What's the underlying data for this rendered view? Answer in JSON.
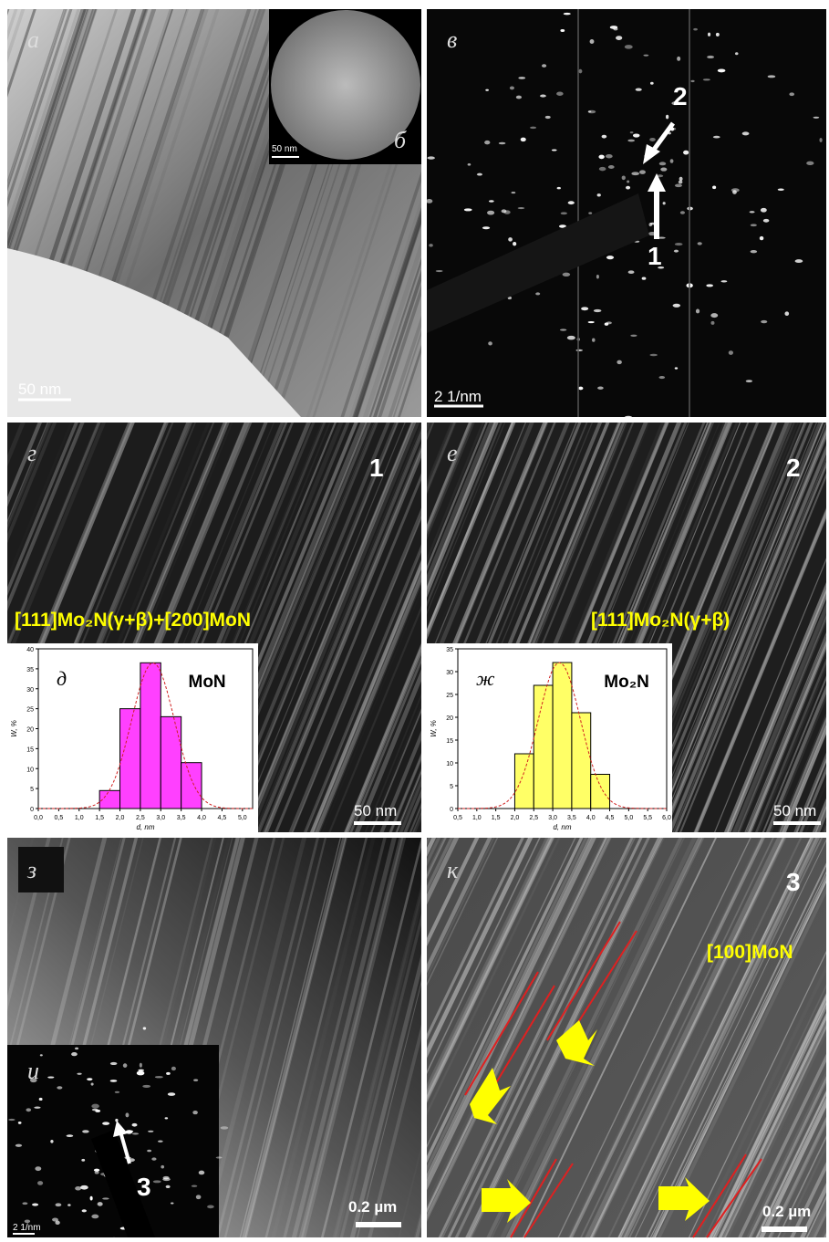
{
  "panels": [
    {
      "label": "а",
      "scale_bar": "50 nm"
    },
    {
      "label": "б",
      "scale_bar": "50 nm"
    },
    {
      "label": "в",
      "scale_bar": "2 1/nm",
      "markers": [
        "2",
        "1"
      ]
    },
    {
      "label": "г",
      "marker": "1",
      "annotation": "[111]Mo₂N(γ+β)+[200]MoN",
      "scale_bar": "50 nm"
    },
    {
      "label": "е",
      "marker": "2",
      "annotation": "[111]Mo₂N(γ+β)",
      "scale_bar": "50 nm"
    },
    {
      "label": "з",
      "scale_bar": "0.2 µm"
    },
    {
      "label": "и",
      "marker": "3",
      "scale_bar": "2 1/nm"
    },
    {
      "label": "к",
      "marker": "3",
      "annotation": "[100]MoN",
      "scale_bar": "0.2 µm"
    }
  ],
  "chart_data": [
    {
      "type": "histogram",
      "panel_label": "д",
      "title": "MoN",
      "x_label": "d, nm",
      "y_label": "W, %",
      "color": "#ff40ff",
      "bins": [
        1.5,
        2.0,
        2.5,
        3.0,
        3.5,
        4.0
      ],
      "values": [
        4.5,
        25,
        36.5,
        23,
        11.5
      ],
      "xlim": [
        0,
        5.25
      ],
      "ylim": [
        0,
        40
      ],
      "xticks": [
        {
          "value": 0,
          "label": "0,0"
        },
        {
          "value": 0.5,
          "label": "0,5"
        },
        {
          "value": 1,
          "label": "1,0"
        },
        {
          "value": 1.5,
          "label": "1,5"
        },
        {
          "value": 2,
          "label": "2,0"
        },
        {
          "value": 2.5,
          "label": "2,5"
        },
        {
          "value": 3,
          "label": "3,0"
        },
        {
          "value": 3.5,
          "label": "3,5"
        },
        {
          "value": 4,
          "label": "4,0"
        },
        {
          "value": 4.5,
          "label": "4,5"
        },
        {
          "value": 5,
          "label": "5,0"
        }
      ],
      "yticks": [
        0,
        5,
        10,
        15,
        20,
        25,
        30,
        35,
        40
      ]
    },
    {
      "type": "histogram",
      "panel_label": "ж",
      "title": "Mo₂N",
      "x_label": "d, nm",
      "y_label": "W, %",
      "color": "#ffff66",
      "bins": [
        2.0,
        2.5,
        3.0,
        3.5,
        4.0,
        4.5
      ],
      "values": [
        12,
        27,
        32,
        21,
        7.5
      ],
      "xlim": [
        0.5,
        6.0
      ],
      "ylim": [
        0,
        35
      ],
      "xticks": [
        {
          "value": 0.5,
          "label": "0,5"
        },
        {
          "value": 1,
          "label": "1,0"
        },
        {
          "value": 1.5,
          "label": "1,5"
        },
        {
          "value": 2,
          "label": "2,0"
        },
        {
          "value": 2.5,
          "label": "2,5"
        },
        {
          "value": 3,
          "label": "3,0"
        },
        {
          "value": 3.5,
          "label": "3,5"
        },
        {
          "value": 4,
          "label": "4,0"
        },
        {
          "value": 4.5,
          "label": "4,5"
        },
        {
          "value": 5,
          "label": "5,0"
        },
        {
          "value": 5.5,
          "label": "5,5"
        },
        {
          "value": 6,
          "label": "6,0"
        }
      ],
      "yticks": [
        0,
        5,
        10,
        15,
        20,
        25,
        30,
        35
      ]
    }
  ]
}
